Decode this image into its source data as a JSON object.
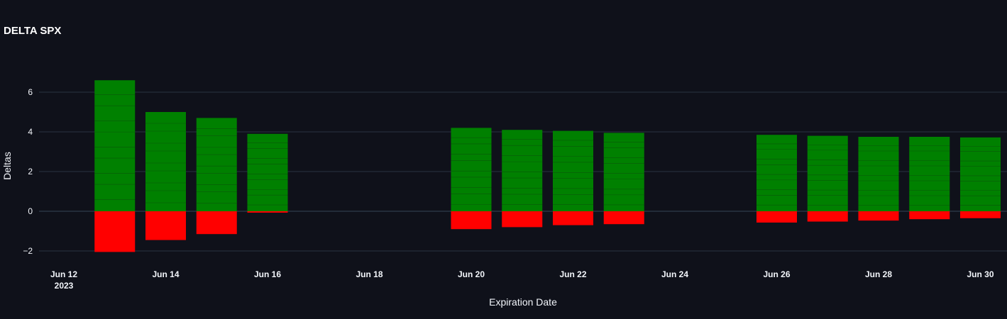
{
  "chart_data": {
    "type": "bar",
    "title": "DELTA SPX",
    "xlabel": "Expiration Date",
    "ylabel": "Deltas",
    "barmode": "relative",
    "x_axis": {
      "type": "date",
      "range": [
        "2023-06-11",
        "2023-07-01"
      ],
      "tick_labels": [
        {
          "date": "2023-06-12",
          "label": "Jun 12",
          "sublabel": "2023"
        },
        {
          "date": "2023-06-14",
          "label": "Jun 14"
        },
        {
          "date": "2023-06-16",
          "label": "Jun 16"
        },
        {
          "date": "2023-06-18",
          "label": "Jun 18"
        },
        {
          "date": "2023-06-20",
          "label": "Jun 20"
        },
        {
          "date": "2023-06-22",
          "label": "Jun 22"
        },
        {
          "date": "2023-06-24",
          "label": "Jun 24"
        },
        {
          "date": "2023-06-26",
          "label": "Jun 26"
        },
        {
          "date": "2023-06-28",
          "label": "Jun 28"
        },
        {
          "date": "2023-06-30",
          "label": "Jun 30"
        }
      ]
    },
    "y_axis": {
      "range": [
        -2.7,
        7.5
      ],
      "tick_values": [
        -2,
        0,
        2,
        4,
        6
      ],
      "tick_labels": [
        "−2",
        "0",
        "2",
        "4",
        "6"
      ],
      "grid": true
    },
    "series": [
      {
        "color": "#008000",
        "points": [
          {
            "date": "2023-06-13",
            "value": 6.6
          },
          {
            "date": "2023-06-14",
            "value": 5.0
          },
          {
            "date": "2023-06-15",
            "value": 4.7
          },
          {
            "date": "2023-06-16",
            "value": 3.9
          },
          {
            "date": "2023-06-20",
            "value": 4.2
          },
          {
            "date": "2023-06-21",
            "value": 4.1
          },
          {
            "date": "2023-06-22",
            "value": 4.05
          },
          {
            "date": "2023-06-23",
            "value": 3.95
          },
          {
            "date": "2023-06-26",
            "value": 3.85
          },
          {
            "date": "2023-06-27",
            "value": 3.8
          },
          {
            "date": "2023-06-28",
            "value": 3.75
          },
          {
            "date": "2023-06-29",
            "value": 3.75
          },
          {
            "date": "2023-06-30",
            "value": 3.72
          }
        ]
      },
      {
        "color": "#ff0000",
        "points": [
          {
            "date": "2023-06-13",
            "value": -2.05
          },
          {
            "date": "2023-06-14",
            "value": -1.45
          },
          {
            "date": "2023-06-15",
            "value": -1.15
          },
          {
            "date": "2023-06-16",
            "value": -0.07
          },
          {
            "date": "2023-06-20",
            "value": -0.9
          },
          {
            "date": "2023-06-21",
            "value": -0.8
          },
          {
            "date": "2023-06-22",
            "value": -0.7
          },
          {
            "date": "2023-06-23",
            "value": -0.65
          },
          {
            "date": "2023-06-26",
            "value": -0.57
          },
          {
            "date": "2023-06-27",
            "value": -0.52
          },
          {
            "date": "2023-06-28",
            "value": -0.47
          },
          {
            "date": "2023-06-29",
            "value": -0.4
          },
          {
            "date": "2023-06-30",
            "value": -0.35
          }
        ]
      }
    ],
    "colors": {
      "background": "#0f111a",
      "grid": "#283442",
      "zeroline": "#283442",
      "text": "#f2f5fa",
      "bar_segment_line": "#0f3d0f"
    }
  }
}
